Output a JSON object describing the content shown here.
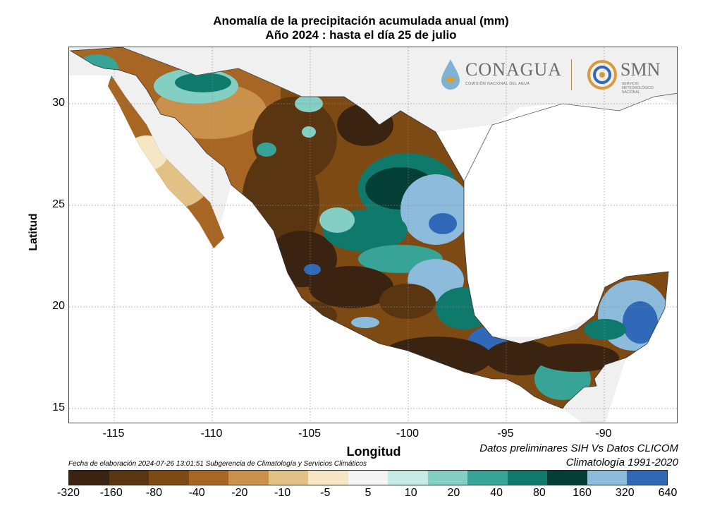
{
  "title": {
    "line1": "Anomalía de la precipitación acumulada anual (mm)",
    "line2": "Año 2024 : hasta el día 25 de julio"
  },
  "axes": {
    "xlabel": "Longitud",
    "ylabel": "Latitud",
    "x_ticks": [
      "-115",
      "-110",
      "-105",
      "-100",
      "-95",
      "-90"
    ],
    "y_ticks": [
      "30",
      "25",
      "20",
      "15"
    ]
  },
  "notes": {
    "datos": "Datos preliminares SIH Vs Datos CLICOM",
    "climatologia": "Climatología 1991-2020",
    "fecha": "Fecha de elaboración 2024-07-26 13:01:51 Subgerencia de Climatología y Servicios Climáticos"
  },
  "logos": {
    "conagua": "CONAGUA",
    "conagua_sub": "COMISIÓN NACIONAL DEL AGUA",
    "smn": "SMN",
    "smn_sub": "SERVICIO METEOROLÓGICO NACIONAL"
  },
  "colorbar": {
    "labels": [
      "-320",
      "-160",
      "-80",
      "-40",
      "-20",
      "-10",
      "-5",
      "5",
      "10",
      "20",
      "40",
      "80",
      "160",
      "320",
      "640"
    ],
    "colors": [
      "#3a2310",
      "#5a3512",
      "#7e4a14",
      "#a86624",
      "#c9914a",
      "#e2c186",
      "#f5e6c4",
      "#f4f4f4",
      "#c6ebe5",
      "#84cfc4",
      "#37a497",
      "#0f7a6c",
      "#043f36",
      "#8dbbdb",
      "#2f69b8"
    ]
  },
  "map_colors": {
    "ocean": "#ffffff",
    "land_outside": "#f0f0f0",
    "grid": "#888888"
  }
}
